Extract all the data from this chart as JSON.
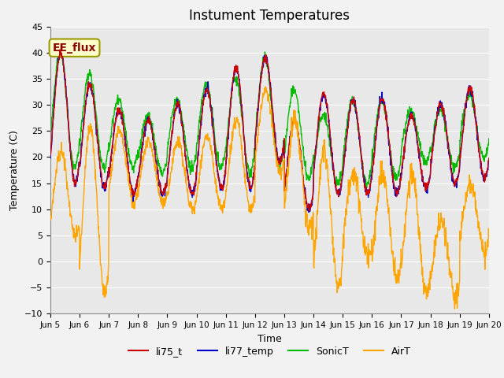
{
  "title": "Instument Temperatures",
  "xlabel": "Time",
  "ylabel": "Temperature (C)",
  "ylim": [
    -10,
    45
  ],
  "annotation_text": "EE_flux",
  "annotation_color": "#8B0000",
  "annotation_bg": "#FFFFCC",
  "colors": {
    "li75_t": "#CC0000",
    "li77_temp": "#0000CC",
    "SonicT": "#00BB00",
    "AirT": "#FFA500"
  },
  "bg_color": "#E8E8E8",
  "grid_color": "#FFFFFF",
  "tick_labels": [
    "Jun 5",
    "Jun 6",
    "Jun 7",
    "Jun 8",
    "Jun 9",
    "Jun 10",
    "Jun 11",
    "Jun 12",
    "Jun 13",
    "Jun 14",
    "Jun 15",
    "Jun 16",
    "Jun 17",
    "Jun 18",
    "Jun 19",
    "Jun 20"
  ],
  "title_fontsize": 12,
  "label_fontsize": 9,
  "legend_fontsize": 9
}
